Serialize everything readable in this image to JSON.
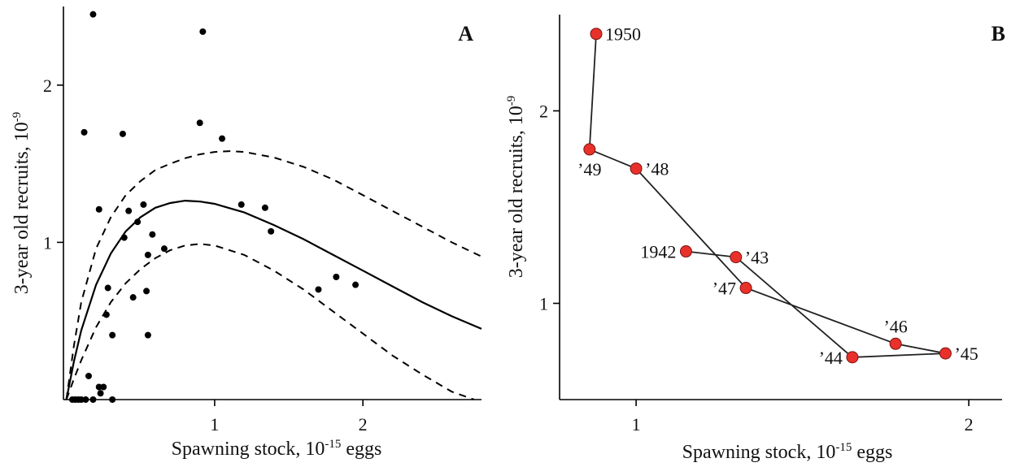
{
  "chart_data": [
    {
      "type": "scatter",
      "panel_label": "A",
      "xlabel_base": "Spawning stock, 10",
      "xlabel_exp": "-15",
      "xlabel_tail": " eggs",
      "ylabel_base": "3-year old recruits, 10",
      "ylabel_exp": "-9",
      "xlim": [
        -0.02,
        2.8
      ],
      "ylim": [
        0,
        2.5
      ],
      "xticks": [
        {
          "value": 1,
          "label": "1"
        },
        {
          "value": 2,
          "label": "2"
        }
      ],
      "yticks": [
        {
          "value": 1,
          "label": "1"
        },
        {
          "value": 2,
          "label": "2"
        }
      ],
      "points": [
        {
          "x": 0.18,
          "y": 2.45
        },
        {
          "x": 0.92,
          "y": 2.34
        },
        {
          "x": 0.12,
          "y": 1.7
        },
        {
          "x": 0.38,
          "y": 1.69
        },
        {
          "x": 0.9,
          "y": 1.76
        },
        {
          "x": 1.05,
          "y": 1.66
        },
        {
          "x": 0.22,
          "y": 1.21
        },
        {
          "x": 0.42,
          "y": 1.2
        },
        {
          "x": 0.52,
          "y": 1.24
        },
        {
          "x": 0.48,
          "y": 1.13
        },
        {
          "x": 0.39,
          "y": 1.03
        },
        {
          "x": 0.58,
          "y": 1.05
        },
        {
          "x": 0.55,
          "y": 0.92
        },
        {
          "x": 0.66,
          "y": 0.96
        },
        {
          "x": 1.18,
          "y": 1.24
        },
        {
          "x": 1.34,
          "y": 1.22
        },
        {
          "x": 1.38,
          "y": 1.07
        },
        {
          "x": 0.28,
          "y": 0.71
        },
        {
          "x": 0.54,
          "y": 0.69
        },
        {
          "x": 0.45,
          "y": 0.65
        },
        {
          "x": 0.27,
          "y": 0.54
        },
        {
          "x": 0.31,
          "y": 0.41
        },
        {
          "x": 0.55,
          "y": 0.41
        },
        {
          "x": 1.7,
          "y": 0.7
        },
        {
          "x": 1.82,
          "y": 0.78
        },
        {
          "x": 1.95,
          "y": 0.73
        },
        {
          "x": 0.15,
          "y": 0.15
        },
        {
          "x": 0.22,
          "y": 0.08
        },
        {
          "x": 0.25,
          "y": 0.08
        },
        {
          "x": 0.23,
          "y": 0.04
        },
        {
          "x": 0.04,
          "y": 0.0
        },
        {
          "x": 0.06,
          "y": 0.0
        },
        {
          "x": 0.08,
          "y": 0.0
        },
        {
          "x": 0.1,
          "y": 0.0
        },
        {
          "x": 0.13,
          "y": 0.0
        },
        {
          "x": 0.18,
          "y": 0.0
        },
        {
          "x": 0.31,
          "y": 0.0
        }
      ],
      "curves": [
        {
          "style": "solid",
          "x": [
            0,
            0.05,
            0.1,
            0.2,
            0.3,
            0.4,
            0.5,
            0.6,
            0.7,
            0.8,
            0.9,
            1.0,
            1.2,
            1.4,
            1.6,
            1.8,
            2.0,
            2.2,
            2.4,
            2.6,
            2.8
          ],
          "y": [
            0,
            0.24,
            0.44,
            0.73,
            0.93,
            1.07,
            1.16,
            1.22,
            1.25,
            1.265,
            1.26,
            1.245,
            1.19,
            1.11,
            1.02,
            0.92,
            0.82,
            0.72,
            0.62,
            0.53,
            0.45
          ]
        },
        {
          "style": "dashed",
          "x": [
            0,
            0.05,
            0.1,
            0.2,
            0.3,
            0.4,
            0.5,
            0.6,
            0.7,
            0.8,
            0.9,
            1.0,
            1.1,
            1.2,
            1.4,
            1.6,
            1.8,
            2.0,
            2.2,
            2.4,
            2.6,
            2.8
          ],
          "y": [
            0,
            0.34,
            0.62,
            0.96,
            1.16,
            1.3,
            1.39,
            1.46,
            1.5,
            1.535,
            1.56,
            1.575,
            1.58,
            1.575,
            1.54,
            1.48,
            1.4,
            1.3,
            1.2,
            1.1,
            1.0,
            0.91
          ]
        },
        {
          "style": "dashed",
          "x": [
            0,
            0.05,
            0.1,
            0.2,
            0.3,
            0.4,
            0.5,
            0.6,
            0.7,
            0.8,
            0.9,
            1.0,
            1.2,
            1.4,
            1.6,
            1.8,
            2.0,
            2.2,
            2.4,
            2.6,
            2.75
          ],
          "y": [
            0,
            0.13,
            0.25,
            0.46,
            0.62,
            0.74,
            0.83,
            0.9,
            0.95,
            0.98,
            0.99,
            0.98,
            0.92,
            0.82,
            0.7,
            0.56,
            0.42,
            0.28,
            0.16,
            0.05,
            0.0
          ]
        }
      ]
    },
    {
      "type": "line",
      "panel_label": "B",
      "xlabel_base": "Spawning stock, 10",
      "xlabel_exp": "-15",
      "xlabel_tail": " eggs",
      "ylabel_base": "3-year old recruits, 10",
      "ylabel_exp": "-9",
      "xlim": [
        0.77,
        2.1
      ],
      "ylim": [
        0.5,
        2.5
      ],
      "xticks": [
        {
          "value": 1,
          "label": "1"
        },
        {
          "value": 2,
          "label": "2"
        }
      ],
      "yticks": [
        {
          "value": 1,
          "label": "1"
        },
        {
          "value": 2,
          "label": "2"
        }
      ],
      "points": [
        {
          "label": "1942",
          "x": 1.15,
          "y": 1.27,
          "anchor": "left"
        },
        {
          "label": "’43",
          "x": 1.3,
          "y": 1.24,
          "anchor": "right"
        },
        {
          "label": "’44",
          "x": 1.65,
          "y": 0.72,
          "anchor": "left"
        },
        {
          "label": "’45",
          "x": 1.93,
          "y": 0.74,
          "anchor": "right"
        },
        {
          "label": "’46",
          "x": 1.78,
          "y": 0.79,
          "anchor": "above"
        },
        {
          "label": "’47",
          "x": 1.33,
          "y": 1.08,
          "anchor": "left"
        },
        {
          "label": "’48",
          "x": 1.0,
          "y": 1.7,
          "anchor": "right"
        },
        {
          "label": "’49",
          "x": 0.86,
          "y": 1.8,
          "anchor": "below"
        },
        {
          "label": "1950",
          "x": 0.88,
          "y": 2.4,
          "anchor": "right"
        }
      ]
    }
  ]
}
